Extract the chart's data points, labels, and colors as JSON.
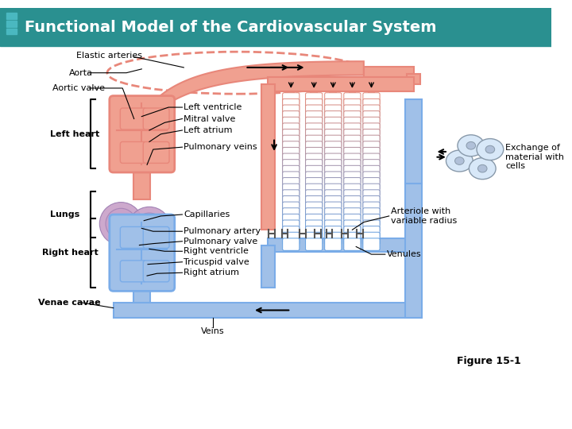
{
  "title": "Functional Model of the Cardiovascular System",
  "figure_label": "Figure 15-1",
  "bg_color": "#ffffff",
  "header_color": "#2a9090",
  "header_icon_color": "#4ab8c0",
  "artery_color": "#E8877A",
  "vein_color": "#7AACE8",
  "capillary_top_color": "#E8877A",
  "capillary_bottom_color": "#7AACE8",
  "capillary_mid_color": "#9A7ABA",
  "left_heart_color": "#E8877A",
  "right_heart_color": "#7AACE8",
  "elastic_artery_color": "#E8877A",
  "elastic_artery_fill": "#F5C0B8",
  "labels": {
    "elastic_arteries": "Elastic arteries",
    "aorta": "Aorta",
    "aortic_valve": "Aortic valve",
    "left_heart": "Left heart",
    "left_ventricle": "Left ventricle",
    "mitral_valve": "Mitral valve",
    "left_atrium": "Left atrium",
    "pulmonary_veins": "Pulmonary veins",
    "lungs": "Lungs",
    "capillaries": "Capillaries",
    "pulmonary_artery": "Pulmonary artery",
    "pulmonary_valve": "Pulmonary valve",
    "right_ventricle": "Right ventricle",
    "tricuspid_valve": "Tricuspid valve",
    "right_atrium": "Right atrium",
    "right_heart": "Right heart",
    "venae_cavae": "Venae cavae",
    "veins": "Veins",
    "arteriole": "Arteriole with\nvariable radius",
    "exchange": "Exchange of\nmaterial with\ncells",
    "venules": "Venules"
  }
}
